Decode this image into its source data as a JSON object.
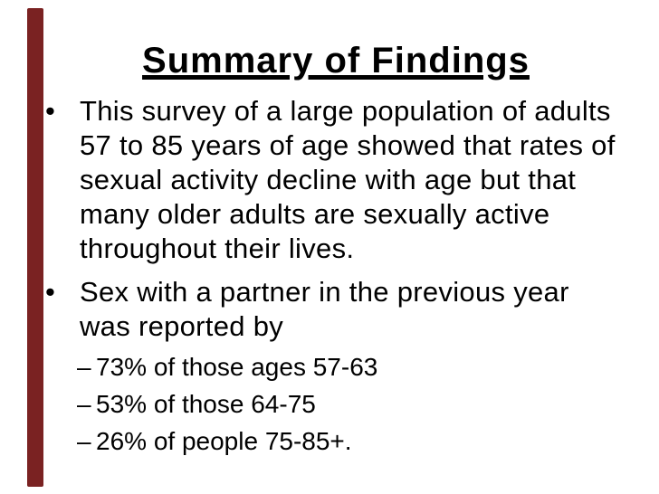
{
  "slide": {
    "background_color": "#ffffff",
    "text_color": "#000000",
    "accent_color": "#7a2222",
    "title": "Summary of Findings",
    "bullets": [
      {
        "marker": "•",
        "text": "This survey of a large population of adults\n57 to 85 years of age showed that rates of\nsexual activity decline with age but that\nmany older adults are sexually active\nthroughout their lives."
      },
      {
        "marker": "•",
        "text": "Sex with a partner in the previous year\nwas reported by"
      }
    ],
    "sub_bullets": [
      {
        "marker": "–",
        "text": "73% of those ages 57-63"
      },
      {
        "marker": "–",
        "text": "53% of those 64-75"
      },
      {
        "marker": "–",
        "text": "26% of people 75-85+."
      }
    ]
  }
}
